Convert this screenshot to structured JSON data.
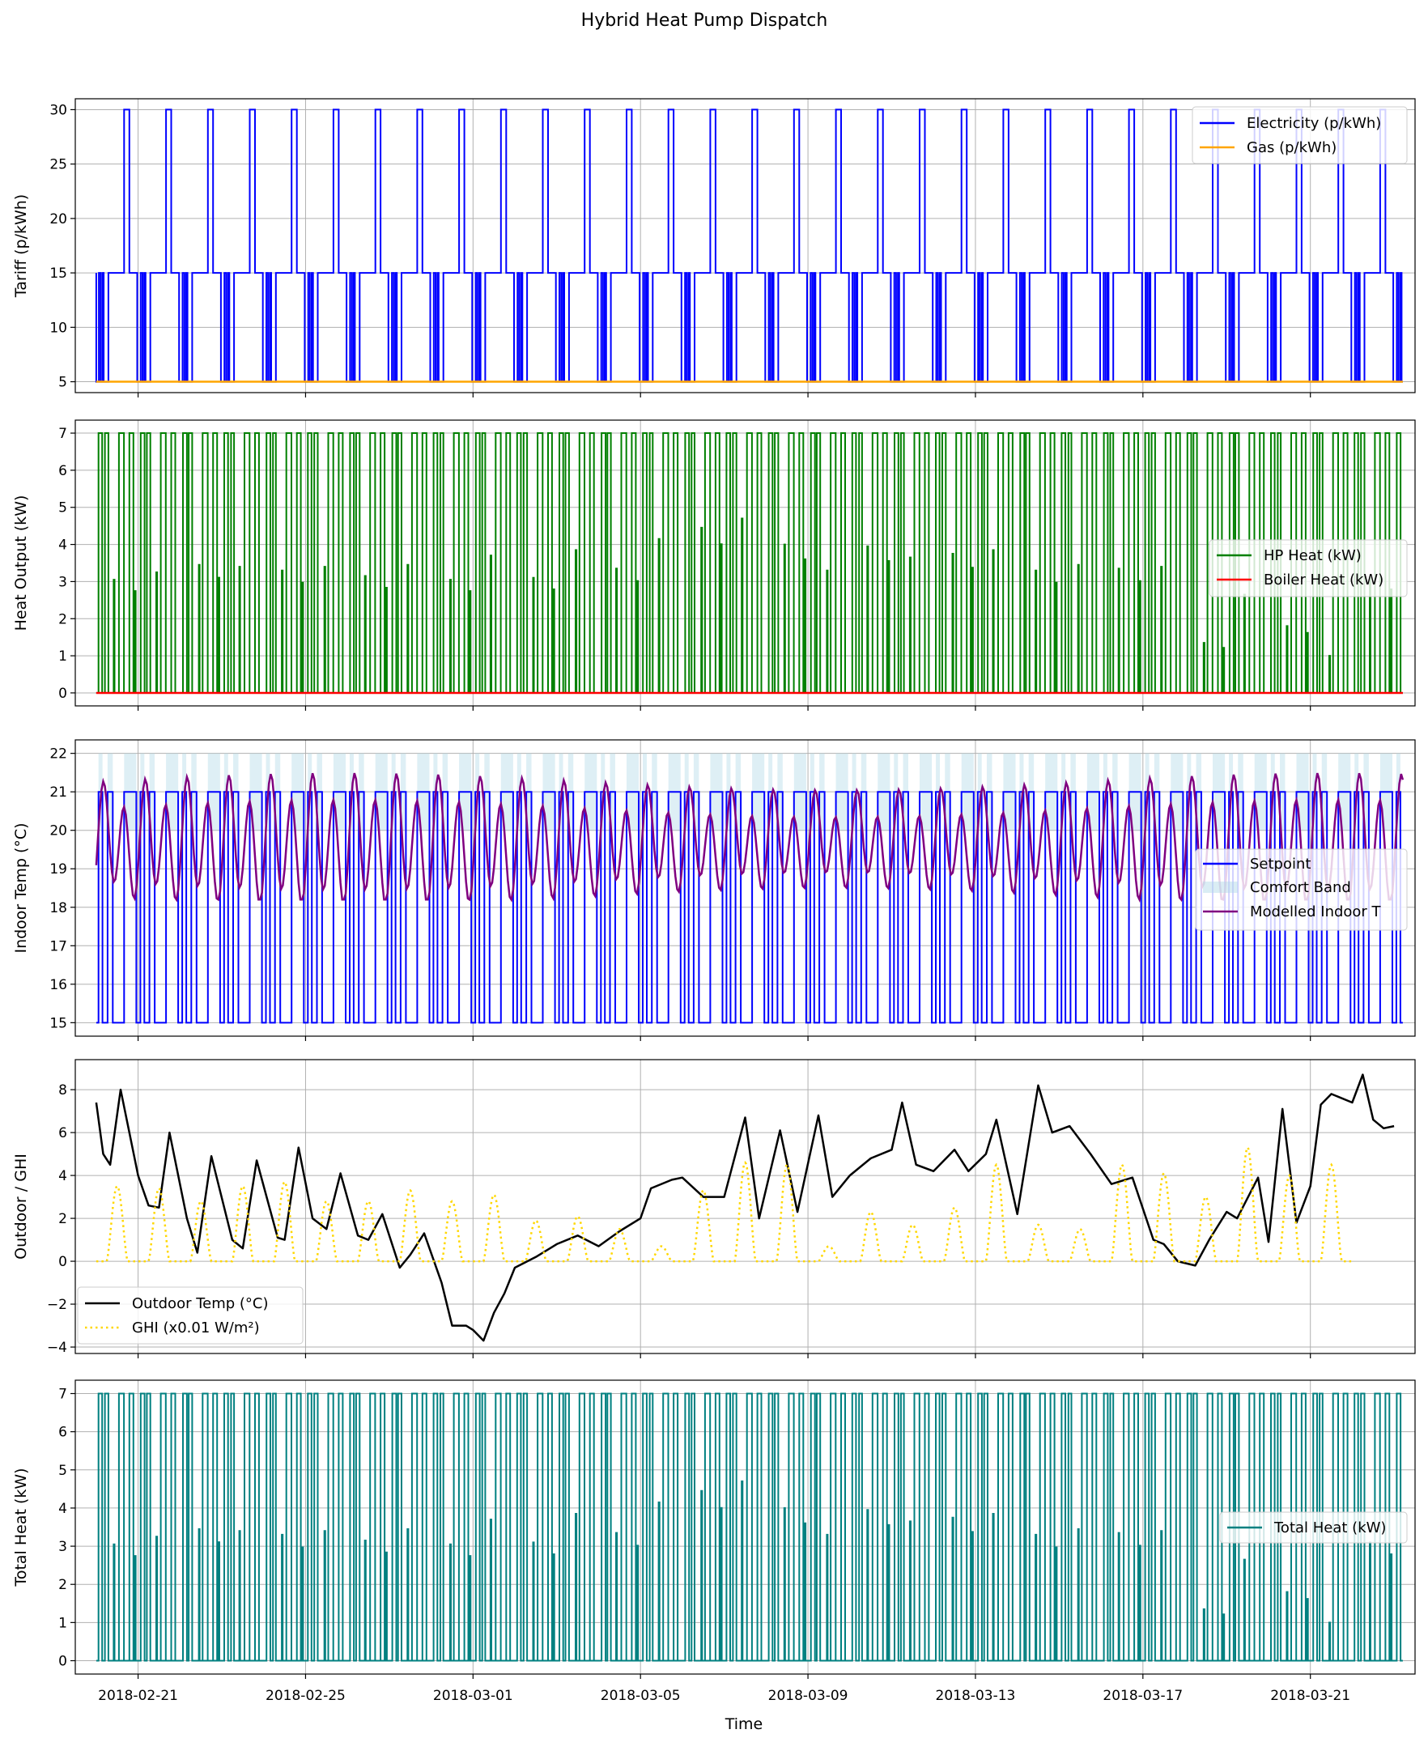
{
  "figure": {
    "title": "Hybrid Heat Pump Dispatch",
    "xlabel": "Time"
  },
  "chart_data": [
    {
      "type": "line",
      "ylabel": "Tariff (p/kWh)",
      "xlim": [
        "2018-02-19T12:00",
        "2018-03-23T12:00"
      ],
      "ylim": [
        4,
        31
      ],
      "yticks": [
        5,
        10,
        15,
        20,
        25,
        30
      ],
      "grid": true,
      "legend_position": "upper right",
      "series": [
        {
          "name": "Electricity (p/kWh)",
          "color": "#0000ff",
          "pattern": "daily: 5 overnight, 15 shoulder, 30 peak 16:00-19:00"
        },
        {
          "name": "Gas (p/kWh)",
          "color": "#ffa500",
          "constant": 5
        }
      ]
    },
    {
      "type": "line",
      "ylabel": "Heat Output (kW)",
      "ylim": [
        -0.35,
        7.35
      ],
      "yticks": [
        0,
        1,
        2,
        3,
        4,
        5,
        6,
        7
      ],
      "grid": true,
      "legend_position": "center right",
      "series": [
        {
          "name": "HP Heat (kW)",
          "color": "#008000",
          "max": 7,
          "min": 0
        },
        {
          "name": "Boiler Heat (kW)",
          "color": "#ff0000",
          "constant": 0
        }
      ]
    },
    {
      "type": "line",
      "ylabel": "Indoor Temp (°C)",
      "ylim": [
        14.65,
        22.35
      ],
      "yticks": [
        15,
        16,
        17,
        18,
        19,
        20,
        21,
        22
      ],
      "grid": true,
      "legend_position": "center right",
      "series": [
        {
          "name": "Setpoint",
          "color": "#0000ff",
          "levels": [
            15,
            21
          ]
        },
        {
          "name": "Comfort Band",
          "color": "#add8e6",
          "range": [
            20,
            22
          ]
        },
        {
          "name": "Modelled Indoor T",
          "color": "#800080",
          "range": [
            18.2,
            21.9
          ]
        }
      ]
    },
    {
      "type": "line",
      "ylabel": "Outdoor / GHI",
      "ylim": [
        -4.3,
        9.4
      ],
      "yticks": [
        -4,
        -2,
        0,
        2,
        4,
        6,
        8
      ],
      "grid": true,
      "legend_position": "lower left",
      "series": [
        {
          "name": "Outdoor Temp (°C)",
          "color": "#000000",
          "points": [
            [
              "2018-02-20T00:00",
              7.4
            ],
            [
              "2018-02-20T04:00",
              5.0
            ],
            [
              "2018-02-20T08:00",
              4.5
            ],
            [
              "2018-02-20T14:00",
              8.0
            ],
            [
              "2018-02-21T00:00",
              4.0
            ],
            [
              "2018-02-21T06:00",
              2.6
            ],
            [
              "2018-02-21T12:00",
              2.5
            ],
            [
              "2018-02-21T18:00",
              6.0
            ],
            [
              "2018-02-22T04:00",
              2.0
            ],
            [
              "2018-02-22T10:00",
              0.4
            ],
            [
              "2018-02-22T18:00",
              4.9
            ],
            [
              "2018-02-23T06:00",
              1.0
            ],
            [
              "2018-02-23T12:00",
              0.6
            ],
            [
              "2018-02-23T20:00",
              4.7
            ],
            [
              "2018-02-24T08:00",
              1.1
            ],
            [
              "2018-02-24T12:00",
              1.0
            ],
            [
              "2018-02-24T20:00",
              5.3
            ],
            [
              "2018-02-25T04:00",
              2.0
            ],
            [
              "2018-02-25T12:00",
              1.5
            ],
            [
              "2018-02-25T20:00",
              4.1
            ],
            [
              "2018-02-26T06:00",
              1.2
            ],
            [
              "2018-02-26T12:00",
              1.0
            ],
            [
              "2018-02-26T20:00",
              2.2
            ],
            [
              "2018-02-27T06:00",
              -0.3
            ],
            [
              "2018-02-27T12:00",
              0.3
            ],
            [
              "2018-02-27T20:00",
              1.3
            ],
            [
              "2018-02-28T06:00",
              -1.0
            ],
            [
              "2018-02-28T12:00",
              -3.0
            ],
            [
              "2018-02-28T20:00",
              -3.0
            ],
            [
              "2018-03-01T00:00",
              -3.2
            ],
            [
              "2018-03-01T06:00",
              -3.7
            ],
            [
              "2018-03-01T12:00",
              -2.4
            ],
            [
              "2018-03-01T18:00",
              -1.5
            ],
            [
              "2018-03-02T00:00",
              -0.3
            ],
            [
              "2018-03-02T12:00",
              0.2
            ],
            [
              "2018-03-03T00:00",
              0.8
            ],
            [
              "2018-03-03T12:00",
              1.2
            ],
            [
              "2018-03-04T00:00",
              0.7
            ],
            [
              "2018-03-04T12:00",
              1.4
            ],
            [
              "2018-03-05T00:00",
              2.0
            ],
            [
              "2018-03-05T06:00",
              3.4
            ],
            [
              "2018-03-05T18:00",
              3.8
            ],
            [
              "2018-03-06T00:00",
              3.9
            ],
            [
              "2018-03-06T12:00",
              3.0
            ],
            [
              "2018-03-07T00:00",
              3.0
            ],
            [
              "2018-03-07T12:00",
              6.7
            ],
            [
              "2018-03-07T20:00",
              2.0
            ],
            [
              "2018-03-08T08:00",
              6.1
            ],
            [
              "2018-03-08T18:00",
              2.3
            ],
            [
              "2018-03-09T06:00",
              6.8
            ],
            [
              "2018-03-09T14:00",
              3.0
            ],
            [
              "2018-03-10T00:00",
              4.0
            ],
            [
              "2018-03-10T12:00",
              4.8
            ],
            [
              "2018-03-11T00:00",
              5.2
            ],
            [
              "2018-03-11T06:00",
              7.4
            ],
            [
              "2018-03-11T14:00",
              4.5
            ],
            [
              "2018-03-12T00:00",
              4.2
            ],
            [
              "2018-03-12T12:00",
              5.2
            ],
            [
              "2018-03-12T20:00",
              4.2
            ],
            [
              "2018-03-13T06:00",
              5.0
            ],
            [
              "2018-03-13T12:00",
              6.6
            ],
            [
              "2018-03-14T00:00",
              2.2
            ],
            [
              "2018-03-14T12:00",
              8.2
            ],
            [
              "2018-03-14T20:00",
              6.0
            ],
            [
              "2018-03-15T06:00",
              6.3
            ],
            [
              "2018-03-15T18:00",
              5.0
            ],
            [
              "2018-03-16T06:00",
              3.6
            ],
            [
              "2018-03-16T18:00",
              3.9
            ],
            [
              "2018-03-17T06:00",
              1.0
            ],
            [
              "2018-03-17T12:00",
              0.8
            ],
            [
              "2018-03-17T20:00",
              0.0
            ],
            [
              "2018-03-18T06:00",
              -0.2
            ],
            [
              "2018-03-18T14:00",
              1.0
            ],
            [
              "2018-03-19T00:00",
              2.3
            ],
            [
              "2018-03-19T06:00",
              2.0
            ],
            [
              "2018-03-19T18:00",
              3.9
            ],
            [
              "2018-03-20T00:00",
              0.9
            ],
            [
              "2018-03-20T08:00",
              7.1
            ],
            [
              "2018-03-20T16:00",
              1.8
            ],
            [
              "2018-03-21T00:00",
              3.5
            ],
            [
              "2018-03-21T06:00",
              7.3
            ],
            [
              "2018-03-21T12:00",
              7.8
            ],
            [
              "2018-03-22T00:00",
              7.4
            ],
            [
              "2018-03-22T06:00",
              8.7
            ],
            [
              "2018-03-22T12:00",
              6.6
            ],
            [
              "2018-03-22T18:00",
              6.2
            ],
            [
              "2018-03-23T00:00",
              6.3
            ]
          ]
        },
        {
          "name": "GHI (x0.01 W/m²)",
          "color": "#ffd700",
          "style": "dotted",
          "daily_peaks": [
            3.5,
            3.4,
            2.8,
            3.5,
            3.7,
            2.8,
            2.8,
            3.3,
            2.8,
            3.1,
            1.9,
            2.1,
            1.5,
            0.7,
            3.3,
            4.6,
            4.5,
            0.7,
            2.3,
            1.7,
            2.5,
            4.5,
            1.7,
            1.5,
            4.5,
            4.1,
            3.0,
            5.3,
            4.0,
            4.5
          ]
        }
      ]
    },
    {
      "type": "line",
      "ylabel": "Total Heat (kW)",
      "ylim": [
        -0.35,
        7.35
      ],
      "yticks": [
        0,
        1,
        2,
        3,
        4,
        5,
        6,
        7
      ],
      "grid": true,
      "legend_position": "center right",
      "series": [
        {
          "name": "Total Heat (kW)",
          "color": "#008080",
          "max": 7,
          "min": 0
        }
      ]
    }
  ],
  "x_ticks": [
    "2018-02-21",
    "2018-02-25",
    "2018-03-01",
    "2018-03-05",
    "2018-03-09",
    "2018-03-13",
    "2018-03-17",
    "2018-03-21"
  ],
  "hp_spikes": [
    3.05,
    3.25,
    3.45,
    3.4,
    3.3,
    3.4,
    3.15,
    3.45,
    3.05,
    3.7,
    3.1,
    3.85,
    3.35,
    4.15,
    4.45,
    4.7,
    4.0,
    3.3,
    3.95,
    3.65,
    3.75,
    3.85,
    3.3,
    3.45,
    3.35,
    3.4,
    1.35,
    2.65,
    1.8,
    1.0,
    3.1,
    3.0,
    0.95,
    3.05,
    0.45,
    2.95,
    0.8,
    3.15,
    1.75,
    3.45,
    3.0,
    1.9,
    4.05,
    2.45,
    0.3,
    6.9
  ]
}
